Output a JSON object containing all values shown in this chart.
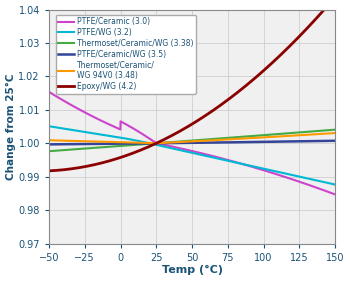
{
  "title": "",
  "xlabel": "Temp (°C)",
  "ylabel": "Change from 25°C",
  "xlim": [
    -50,
    150
  ],
  "ylim": [
    0.97,
    1.04
  ],
  "xticks": [
    -50,
    -25,
    0,
    25,
    50,
    75,
    100,
    125,
    150
  ],
  "yticks": [
    0.97,
    0.98,
    0.99,
    1.0,
    1.01,
    1.02,
    1.03,
    1.04
  ],
  "ref_temp": 25,
  "background_color": "#f0f0f0",
  "grid_color": "#c8c8c8",
  "axis_label_color": "#1a5276",
  "tick_label_color": "#1a5276",
  "series": [
    {
      "label": "PTFE/Ceramic (3.0)",
      "color": "#cc44cc",
      "linewidth": 1.5,
      "type": "ptfe_ceramic_30"
    },
    {
      "label": "PTFE/WG (3.2)",
      "color": "#00b8d4",
      "linewidth": 1.5,
      "type": "ptfe_wg_32"
    },
    {
      "label": "Thermoset/Ceramic/WG (3.38)",
      "color": "#44aa44",
      "linewidth": 1.5,
      "type": "thermoset_338"
    },
    {
      "label": "PTFE/Ceramic/WG (3.5)",
      "color": "#334499",
      "linewidth": 1.8,
      "type": "ptfe_ceramic_wg_35"
    },
    {
      "label": "Thermoset/Ceramic/\nWG 94V0 (3.48)",
      "color": "#ff9900",
      "linewidth": 1.5,
      "type": "thermoset_348"
    },
    {
      "label": "Epoxy/WG (4.2)",
      "color": "#8b0000",
      "linewidth": 2.0,
      "type": "epoxy_42"
    }
  ]
}
